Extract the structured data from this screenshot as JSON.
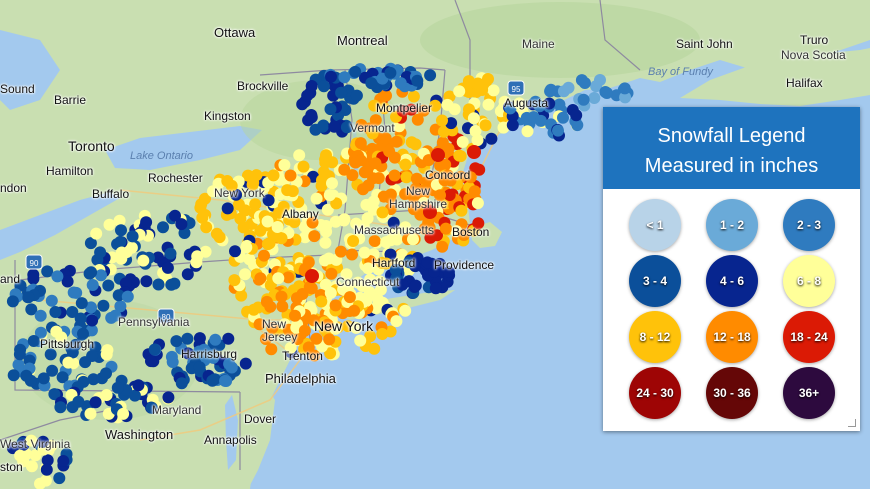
{
  "map": {
    "labels": {
      "ottawa": "Ottawa",
      "montreal": "Montreal",
      "maine": "Maine",
      "saint_john": "Saint John",
      "truro": "Truro",
      "nova_scotia": "Nova Scotia",
      "halifax": "Halifax",
      "bay_of_fundy": "Bay of Fundy",
      "augusta": "Augusta",
      "brockville": "Brockville",
      "kingston": "Kingston",
      "montpelier": "Montpelier",
      "vermont": "Vermont",
      "toronto": "Toronto",
      "lake_ontario": "Lake Ontario",
      "barrie": "Barrie",
      "sound": "Sound",
      "hamilton": "Hamilton",
      "ndon": "ndon",
      "buffalo": "Buffalo",
      "rochester": "Rochester",
      "new_york_state": "New York",
      "albany": "Albany",
      "concord": "Concord",
      "new_hampshire": "New Hampshire",
      "massachusetts": "Massachusetts",
      "boston": "Boston",
      "hartford": "Hartford",
      "providence": "Providence",
      "connecticut": "Connecticut",
      "new_york_city": "New York",
      "new_jersey": "New Jersey",
      "pennsylvania": "Pennsylvania",
      "pittsburgh": "Pittsburgh",
      "harrisburg": "Harrisburg",
      "trenton": "Trenton",
      "philadelphia": "Philadelphia",
      "maryland": "Maryland",
      "dover": "Dover",
      "washington": "Washington",
      "annapolis": "Annapolis",
      "west_virginia": "West Virginia",
      "ston": "ston",
      "and": "and"
    },
    "shields": {
      "i95": "95",
      "i80": "80",
      "i90": "90"
    }
  },
  "legend": {
    "title_line1": "Snowfall Legend",
    "title_line2": "Measured in inches",
    "items": [
      {
        "label": "< 1",
        "color": "#b8d3e8"
      },
      {
        "label": "1 - 2",
        "color": "#6aaad8"
      },
      {
        "label": "2 - 3",
        "color": "#2f7bbf"
      },
      {
        "label": "3 - 4",
        "color": "#0b4f9a"
      },
      {
        "label": "4 - 6",
        "color": "#07258f"
      },
      {
        "label": "6 - 8",
        "color": "#ffff99"
      },
      {
        "label": "8 - 12",
        "color": "#ffc20a"
      },
      {
        "label": "12 - 18",
        "color": "#ff8b00"
      },
      {
        "label": "18 - 24",
        "color": "#db1a05"
      },
      {
        "label": "24 - 30",
        "color": "#9e0505"
      },
      {
        "label": "30 - 36",
        "color": "#650707"
      },
      {
        "label": "36+",
        "color": "#2d0a3e"
      }
    ]
  }
}
